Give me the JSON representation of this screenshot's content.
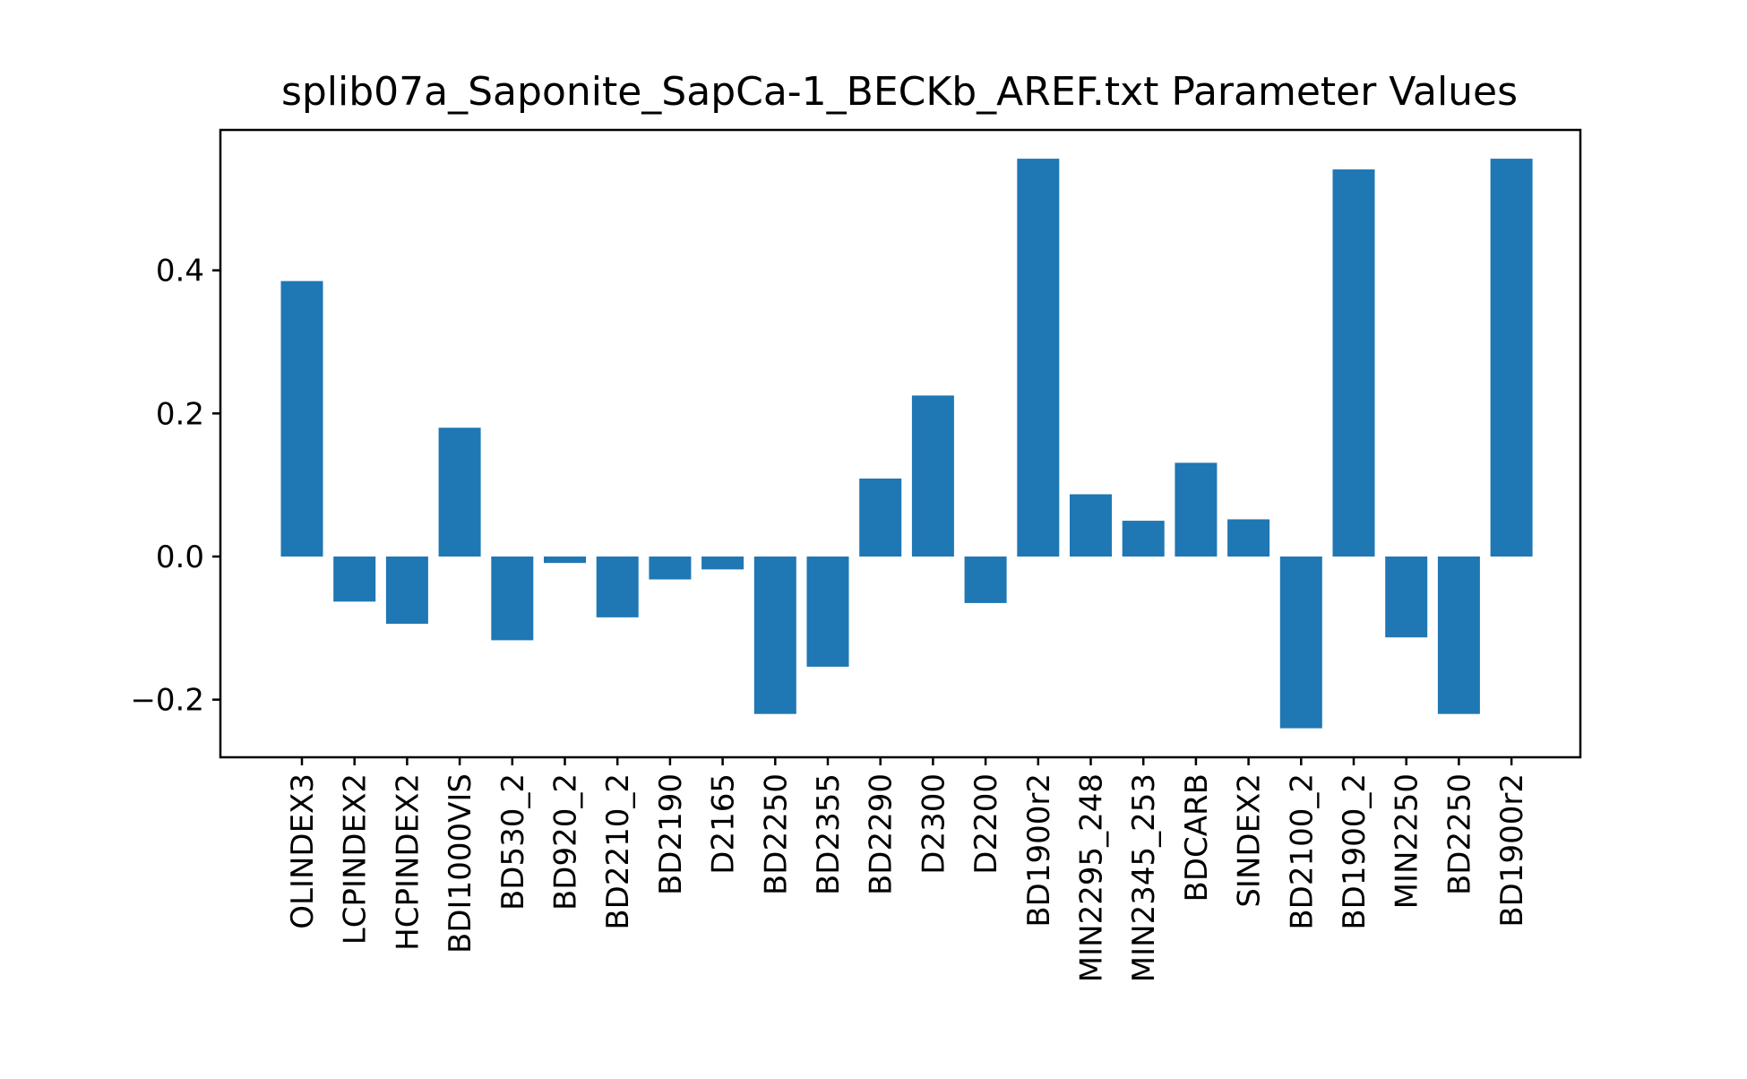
{
  "chart_data": {
    "type": "bar",
    "title": "splib07a_Saponite_SapCa-1_BECKb_AREF.txt Parameter Values",
    "xlabel": "",
    "ylabel": "",
    "ylim": [
      -0.28,
      0.6
    ],
    "yticks": [
      -0.2,
      0.0,
      0.2,
      0.4
    ],
    "ytick_labels": [
      "−0.2",
      "0.0",
      "0.2",
      "0.4"
    ],
    "grid": false,
    "legend": "none",
    "bar_color": "#1f77b4",
    "categories": [
      "OLINDEX3",
      "LCPINDEX2",
      "HCPINDEX2",
      "BDI1000VIS",
      "BD530_2",
      "BD920_2",
      "BD2210_2",
      "BD2190",
      "D2165",
      "BD2250",
      "BD2355",
      "BD2290",
      "D2300",
      "D2200",
      "BD1900r2",
      "MIN2295_248",
      "MIN2345_253",
      "BDCARB",
      "SINDEX2",
      "BD2100_2",
      "BD1900_2",
      "MIN2250",
      "BD2250",
      "BD1900r2"
    ],
    "values": [
      0.385,
      -0.063,
      -0.094,
      0.18,
      -0.117,
      -0.009,
      -0.085,
      -0.032,
      -0.018,
      -0.22,
      -0.154,
      0.109,
      0.225,
      -0.065,
      0.556,
      0.087,
      0.05,
      0.131,
      0.052,
      -0.24,
      0.541,
      -0.113,
      -0.22,
      0.556
    ]
  }
}
